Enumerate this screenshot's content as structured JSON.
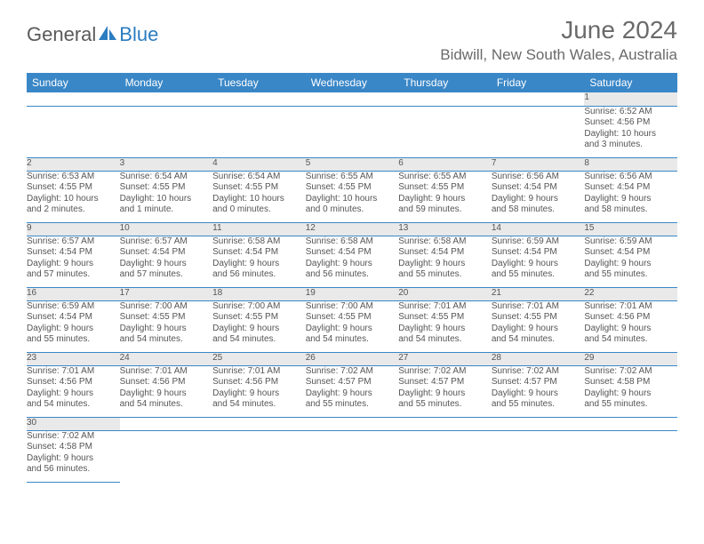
{
  "logo": {
    "text1": "General",
    "text2": "Blue"
  },
  "header": {
    "month_title": "June 2024",
    "location": "Bidwill, New South Wales, Australia"
  },
  "colors": {
    "header_bg": "#3a87c7",
    "header_text": "#ffffff",
    "daynum_bg": "#e9e9e9",
    "row_border": "#3a87c7",
    "body_text": "#555555",
    "logo_gray": "#5a5a5a",
    "logo_blue": "#2b7cc0"
  },
  "weekdays": [
    "Sunday",
    "Monday",
    "Tuesday",
    "Wednesday",
    "Thursday",
    "Friday",
    "Saturday"
  ],
  "weeks": [
    [
      null,
      null,
      null,
      null,
      null,
      null,
      {
        "n": "1",
        "sr": "Sunrise: 6:52 AM",
        "ss": "Sunset: 4:56 PM",
        "d1": "Daylight: 10 hours",
        "d2": "and 3 minutes."
      }
    ],
    [
      {
        "n": "2",
        "sr": "Sunrise: 6:53 AM",
        "ss": "Sunset: 4:55 PM",
        "d1": "Daylight: 10 hours",
        "d2": "and 2 minutes."
      },
      {
        "n": "3",
        "sr": "Sunrise: 6:54 AM",
        "ss": "Sunset: 4:55 PM",
        "d1": "Daylight: 10 hours",
        "d2": "and 1 minute."
      },
      {
        "n": "4",
        "sr": "Sunrise: 6:54 AM",
        "ss": "Sunset: 4:55 PM",
        "d1": "Daylight: 10 hours",
        "d2": "and 0 minutes."
      },
      {
        "n": "5",
        "sr": "Sunrise: 6:55 AM",
        "ss": "Sunset: 4:55 PM",
        "d1": "Daylight: 10 hours",
        "d2": "and 0 minutes."
      },
      {
        "n": "6",
        "sr": "Sunrise: 6:55 AM",
        "ss": "Sunset: 4:55 PM",
        "d1": "Daylight: 9 hours",
        "d2": "and 59 minutes."
      },
      {
        "n": "7",
        "sr": "Sunrise: 6:56 AM",
        "ss": "Sunset: 4:54 PM",
        "d1": "Daylight: 9 hours",
        "d2": "and 58 minutes."
      },
      {
        "n": "8",
        "sr": "Sunrise: 6:56 AM",
        "ss": "Sunset: 4:54 PM",
        "d1": "Daylight: 9 hours",
        "d2": "and 58 minutes."
      }
    ],
    [
      {
        "n": "9",
        "sr": "Sunrise: 6:57 AM",
        "ss": "Sunset: 4:54 PM",
        "d1": "Daylight: 9 hours",
        "d2": "and 57 minutes."
      },
      {
        "n": "10",
        "sr": "Sunrise: 6:57 AM",
        "ss": "Sunset: 4:54 PM",
        "d1": "Daylight: 9 hours",
        "d2": "and 57 minutes."
      },
      {
        "n": "11",
        "sr": "Sunrise: 6:58 AM",
        "ss": "Sunset: 4:54 PM",
        "d1": "Daylight: 9 hours",
        "d2": "and 56 minutes."
      },
      {
        "n": "12",
        "sr": "Sunrise: 6:58 AM",
        "ss": "Sunset: 4:54 PM",
        "d1": "Daylight: 9 hours",
        "d2": "and 56 minutes."
      },
      {
        "n": "13",
        "sr": "Sunrise: 6:58 AM",
        "ss": "Sunset: 4:54 PM",
        "d1": "Daylight: 9 hours",
        "d2": "and 55 minutes."
      },
      {
        "n": "14",
        "sr": "Sunrise: 6:59 AM",
        "ss": "Sunset: 4:54 PM",
        "d1": "Daylight: 9 hours",
        "d2": "and 55 minutes."
      },
      {
        "n": "15",
        "sr": "Sunrise: 6:59 AM",
        "ss": "Sunset: 4:54 PM",
        "d1": "Daylight: 9 hours",
        "d2": "and 55 minutes."
      }
    ],
    [
      {
        "n": "16",
        "sr": "Sunrise: 6:59 AM",
        "ss": "Sunset: 4:54 PM",
        "d1": "Daylight: 9 hours",
        "d2": "and 55 minutes."
      },
      {
        "n": "17",
        "sr": "Sunrise: 7:00 AM",
        "ss": "Sunset: 4:55 PM",
        "d1": "Daylight: 9 hours",
        "d2": "and 54 minutes."
      },
      {
        "n": "18",
        "sr": "Sunrise: 7:00 AM",
        "ss": "Sunset: 4:55 PM",
        "d1": "Daylight: 9 hours",
        "d2": "and 54 minutes."
      },
      {
        "n": "19",
        "sr": "Sunrise: 7:00 AM",
        "ss": "Sunset: 4:55 PM",
        "d1": "Daylight: 9 hours",
        "d2": "and 54 minutes."
      },
      {
        "n": "20",
        "sr": "Sunrise: 7:01 AM",
        "ss": "Sunset: 4:55 PM",
        "d1": "Daylight: 9 hours",
        "d2": "and 54 minutes."
      },
      {
        "n": "21",
        "sr": "Sunrise: 7:01 AM",
        "ss": "Sunset: 4:55 PM",
        "d1": "Daylight: 9 hours",
        "d2": "and 54 minutes."
      },
      {
        "n": "22",
        "sr": "Sunrise: 7:01 AM",
        "ss": "Sunset: 4:56 PM",
        "d1": "Daylight: 9 hours",
        "d2": "and 54 minutes."
      }
    ],
    [
      {
        "n": "23",
        "sr": "Sunrise: 7:01 AM",
        "ss": "Sunset: 4:56 PM",
        "d1": "Daylight: 9 hours",
        "d2": "and 54 minutes."
      },
      {
        "n": "24",
        "sr": "Sunrise: 7:01 AM",
        "ss": "Sunset: 4:56 PM",
        "d1": "Daylight: 9 hours",
        "d2": "and 54 minutes."
      },
      {
        "n": "25",
        "sr": "Sunrise: 7:01 AM",
        "ss": "Sunset: 4:56 PM",
        "d1": "Daylight: 9 hours",
        "d2": "and 54 minutes."
      },
      {
        "n": "26",
        "sr": "Sunrise: 7:02 AM",
        "ss": "Sunset: 4:57 PM",
        "d1": "Daylight: 9 hours",
        "d2": "and 55 minutes."
      },
      {
        "n": "27",
        "sr": "Sunrise: 7:02 AM",
        "ss": "Sunset: 4:57 PM",
        "d1": "Daylight: 9 hours",
        "d2": "and 55 minutes."
      },
      {
        "n": "28",
        "sr": "Sunrise: 7:02 AM",
        "ss": "Sunset: 4:57 PM",
        "d1": "Daylight: 9 hours",
        "d2": "and 55 minutes."
      },
      {
        "n": "29",
        "sr": "Sunrise: 7:02 AM",
        "ss": "Sunset: 4:58 PM",
        "d1": "Daylight: 9 hours",
        "d2": "and 55 minutes."
      }
    ],
    [
      {
        "n": "30",
        "sr": "Sunrise: 7:02 AM",
        "ss": "Sunset: 4:58 PM",
        "d1": "Daylight: 9 hours",
        "d2": "and 56 minutes."
      },
      null,
      null,
      null,
      null,
      null,
      null
    ]
  ]
}
